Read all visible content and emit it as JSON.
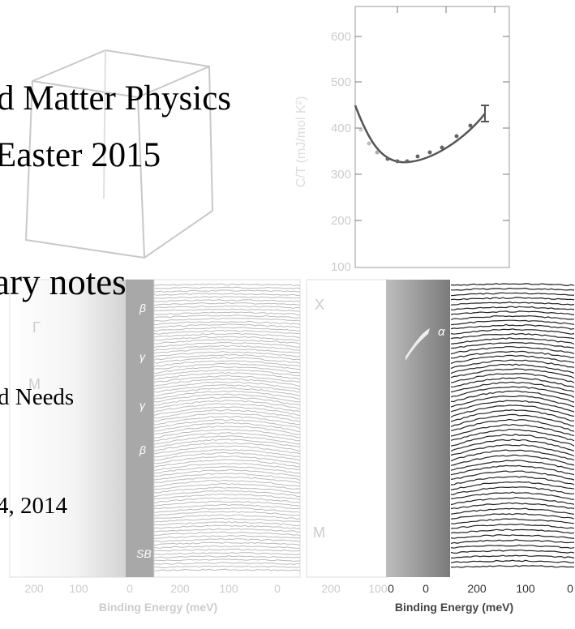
{
  "title_lines": [
    "d Matter Physics",
    "Easter 2015"
  ],
  "subtitle": "ary notes",
  "author_line": "d Needs",
  "date": "4, 2014",
  "figure_plot": {
    "y_axis_label": "C/T (mJ/mol K²)",
    "y_tick_labels": [
      "600",
      "500",
      "400",
      "300",
      "200",
      "100"
    ]
  },
  "figure_arpes_left": {
    "labels": [
      "Γ",
      "M",
      "β",
      "γ",
      "γ",
      "β",
      "SB"
    ],
    "x_tick_labels": [
      "200",
      "100",
      "0",
      "200",
      "100",
      "0"
    ],
    "x_axis_label": "Binding Energy (meV)"
  },
  "figure_arpes_right": {
    "labels": [
      "X",
      "α",
      "M"
    ],
    "x_tick_labels": [
      "200",
      "100",
      "0",
      "0",
      "200",
      "100",
      "0"
    ],
    "x_axis_label": "Binding Energy (meV)"
  }
}
